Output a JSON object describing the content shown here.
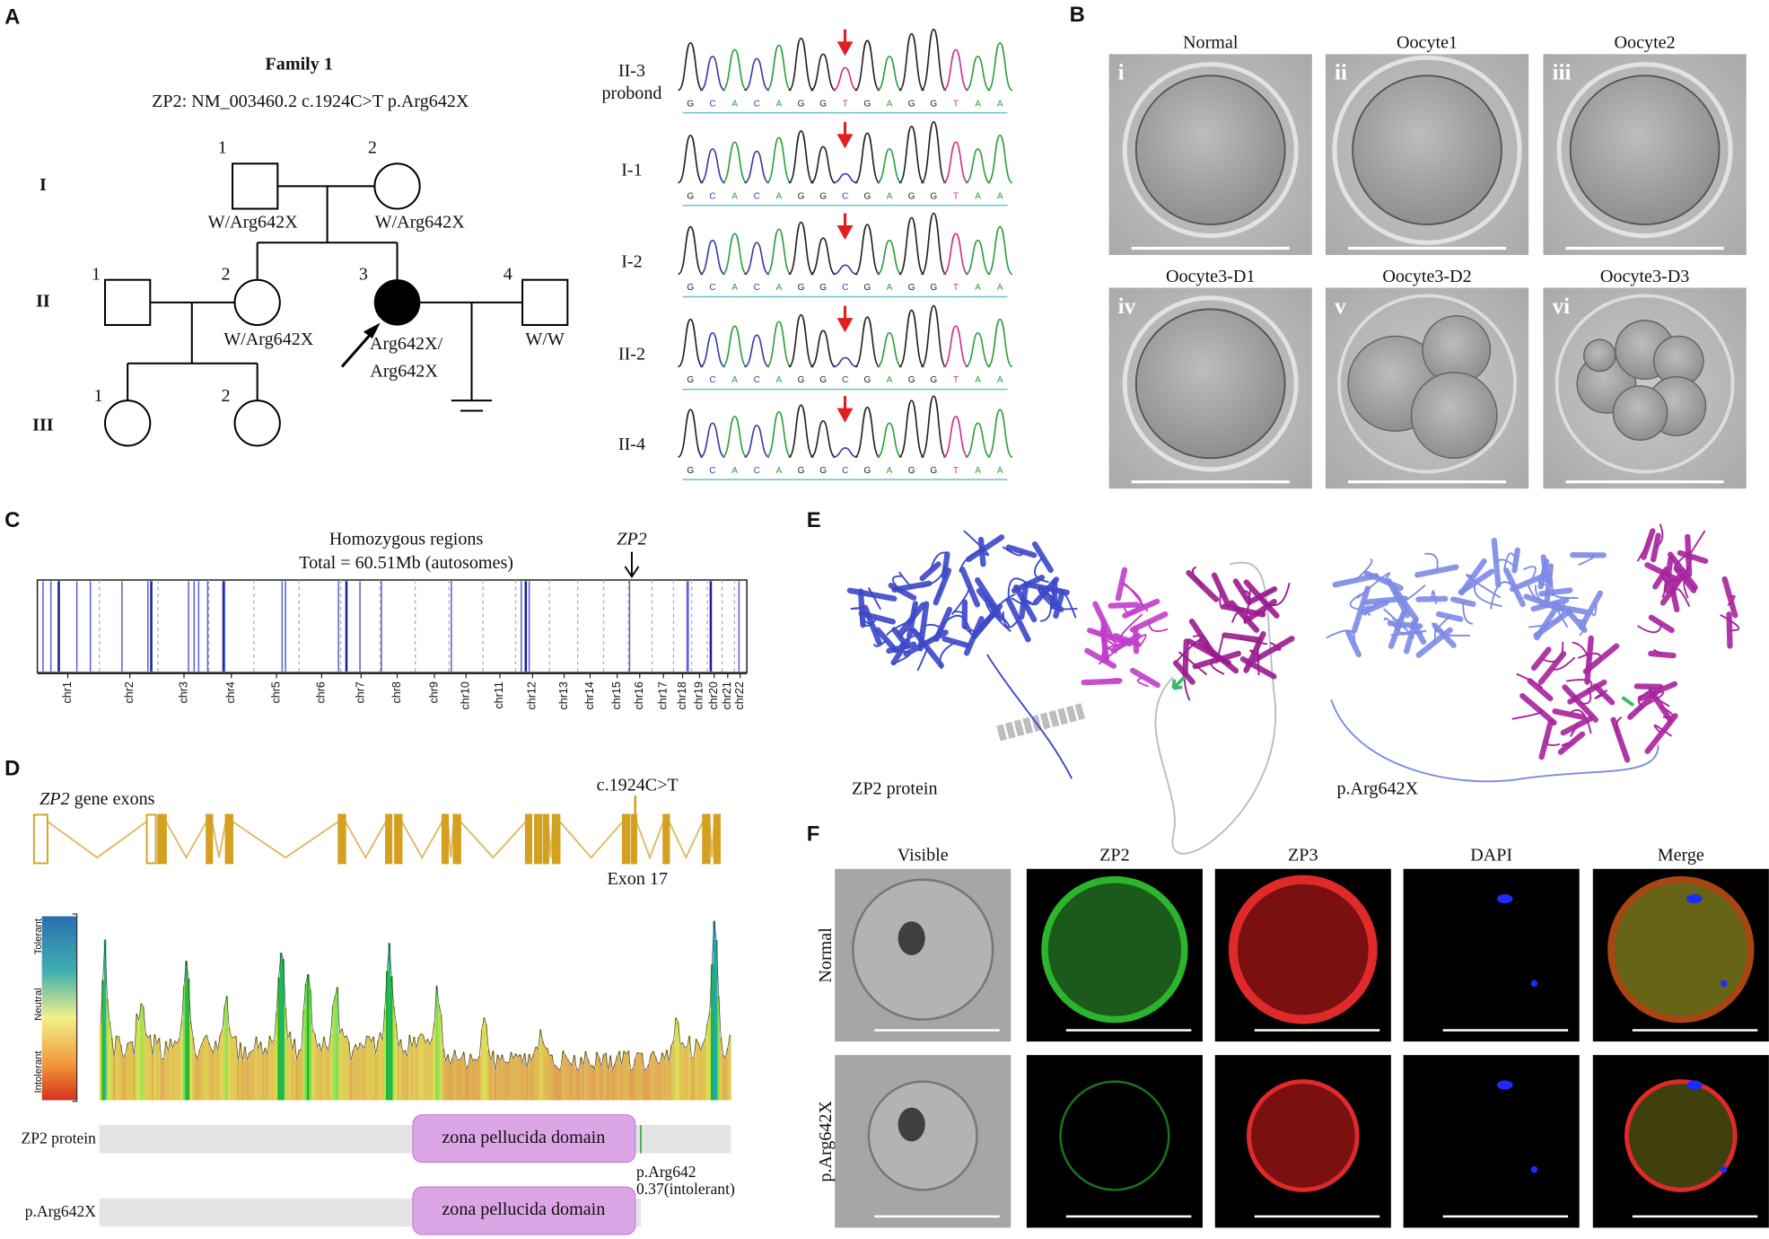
{
  "panels": {
    "A": {
      "label": "A",
      "title": "Family 1",
      "variant": "ZP2:  NM_003460.2  c.1924C>T  p.Arg642X",
      "generations": [
        "I",
        "II",
        "III"
      ],
      "individuals": [
        {
          "number": "1",
          "genotype": "W/Arg642X"
        },
        {
          "number": "2",
          "genotype": "W/Arg642X"
        },
        {
          "number": "1"
        },
        {
          "number": "2",
          "genotype": "W/Arg642X"
        },
        {
          "number": "3",
          "genotype": [
            "Arg642X/",
            "Arg642X"
          ]
        },
        {
          "number": "4",
          "genotype": "W/W"
        },
        {
          "number": "1"
        },
        {
          "number": "2"
        }
      ],
      "chromatograms": [
        {
          "label": [
            "II-3",
            "probond"
          ],
          "bases": [
            "G",
            "C",
            "A",
            "C",
            "A",
            "G",
            "G",
            "T",
            "G",
            "A",
            "G",
            "G",
            "T",
            "A",
            "A"
          ]
        },
        {
          "label": [
            "I-1"
          ],
          "bases": [
            "G",
            "C",
            "A",
            "C",
            "A",
            "G",
            "G",
            "C",
            "G",
            "A",
            "G",
            "G",
            "T",
            "A",
            "A"
          ]
        },
        {
          "label": [
            "I-2"
          ],
          "bases": [
            "G",
            "C",
            "A",
            "C",
            "A",
            "G",
            "G",
            "C",
            "G",
            "A",
            "G",
            "G",
            "T",
            "A",
            "A"
          ]
        },
        {
          "label": [
            "II-2"
          ],
          "bases": [
            "G",
            "C",
            "A",
            "C",
            "A",
            "G",
            "G",
            "C",
            "G",
            "A",
            "G",
            "G",
            "T",
            "A",
            "A"
          ]
        },
        {
          "label": [
            "II-4"
          ],
          "bases": [
            "G",
            "C",
            "A",
            "C",
            "A",
            "G",
            "G",
            "C",
            "G",
            "A",
            "G",
            "G",
            "T",
            "A",
            "A"
          ]
        }
      ]
    },
    "B": {
      "label": "B",
      "images": [
        {
          "numeral": "i",
          "title": "Normal"
        },
        {
          "numeral": "ii",
          "title": "Oocyte1"
        },
        {
          "numeral": "iii",
          "title": "Oocyte2"
        },
        {
          "numeral": "iv",
          "title": "Oocyte3-D1"
        },
        {
          "numeral": "v",
          "title": "Oocyte3-D2"
        },
        {
          "numeral": "vi",
          "title": "Oocyte3-D3"
        }
      ]
    },
    "C": {
      "label": "C",
      "title": [
        "Homozygous regions",
        "Total = 60.51Mb (autosomes)"
      ],
      "marker": "ZP2",
      "chromosomes": [
        "chr1",
        "chr2",
        "chr3",
        "chr4",
        "chr5",
        "chr6",
        "chr7",
        "chr8",
        "chr9",
        "chr10",
        "chr11",
        "chr12",
        "chr13",
        "chr14",
        "chr15",
        "chr16",
        "chr17",
        "chr18",
        "chr19",
        "chr20",
        "chr21",
        "chr22"
      ]
    },
    "D": {
      "label": "D",
      "gene_label": [
        "ZP2",
        " gene exons"
      ],
      "mutation": "c.1924C>T",
      "exon": "Exon 17",
      "scale": [
        "Tolerant",
        "Neutral",
        "Intolerant"
      ],
      "tracks": [
        {
          "name": "ZP2 protein",
          "domain": "zona pellucida domain"
        },
        {
          "name": "p.Arg642X",
          "domain": "zona pellucida domain"
        }
      ],
      "site": [
        "p.Arg642",
        "0.37(intolerant)"
      ]
    },
    "E": {
      "label": "E",
      "structures": [
        "ZP2 protein",
        "p.Arg642X"
      ]
    },
    "F": {
      "label": "F",
      "columns": [
        "Visible",
        "ZP2",
        "ZP3",
        "DAPI",
        "Merge"
      ],
      "rows": [
        "Normal",
        "p.Arg642X"
      ]
    }
  }
}
